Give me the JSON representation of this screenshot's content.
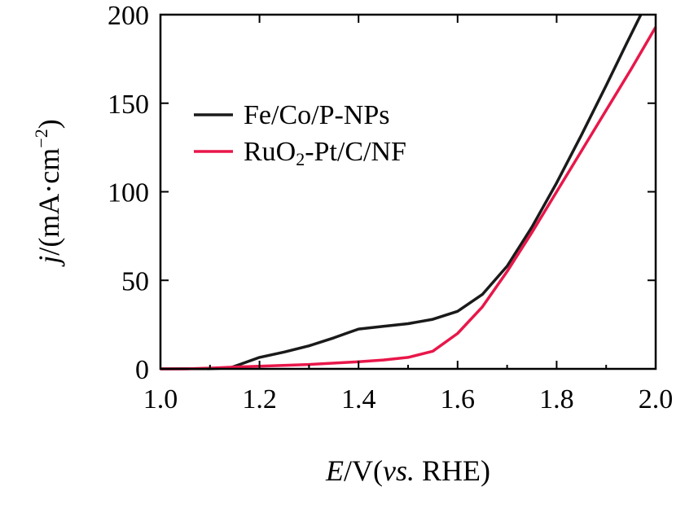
{
  "chart_data": {
    "type": "line",
    "xlabel": {
      "var": "E",
      "unit": "/V(",
      "ref_italic": "vs.",
      "ref": " RHE)"
    },
    "ylabel": {
      "var": "j",
      "unit": "/(mA·cm",
      "exp": "−2",
      "close": ")"
    },
    "xlim": [
      1.0,
      2.0
    ],
    "ylim": [
      0,
      200
    ],
    "x_ticks": [
      "1.0",
      "1.2",
      "1.4",
      "1.6",
      "1.8",
      "2.0"
    ],
    "y_ticks": [
      "0",
      "50",
      "100",
      "150",
      "200"
    ],
    "legend_position": "upper-left",
    "legend": [
      {
        "name": "Fe/Co/P-NPs"
      },
      {
        "base": "RuO",
        "sub": "2",
        "rest": "-Pt/C/NF"
      }
    ],
    "series": [
      {
        "name": "Fe/Co/P-NPs",
        "color": "#1a1a1a",
        "points": [
          [
            1.0,
            0.0
          ],
          [
            1.1,
            0.1
          ],
          [
            1.14,
            0.5
          ],
          [
            1.16,
            2.5
          ],
          [
            1.2,
            6.5
          ],
          [
            1.25,
            9.5
          ],
          [
            1.3,
            13.0
          ],
          [
            1.35,
            17.5
          ],
          [
            1.38,
            20.5
          ],
          [
            1.4,
            22.5
          ],
          [
            1.45,
            24.0
          ],
          [
            1.5,
            25.5
          ],
          [
            1.55,
            28.0
          ],
          [
            1.6,
            32.5
          ],
          [
            1.65,
            42.0
          ],
          [
            1.7,
            58.0
          ],
          [
            1.75,
            80.0
          ],
          [
            1.8,
            105.0
          ],
          [
            1.85,
            132.0
          ],
          [
            1.9,
            160.0
          ],
          [
            1.94,
            183.0
          ],
          [
            1.97,
            200.0
          ]
        ]
      },
      {
        "name": "RuO2-Pt/C/NF",
        "color": "#e8174a",
        "points": [
          [
            1.0,
            0.0
          ],
          [
            1.05,
            0.0
          ],
          [
            1.1,
            0.4
          ],
          [
            1.15,
            1.0
          ],
          [
            1.2,
            1.5
          ],
          [
            1.3,
            2.5
          ],
          [
            1.4,
            4.0
          ],
          [
            1.45,
            5.0
          ],
          [
            1.5,
            6.5
          ],
          [
            1.55,
            10.0
          ],
          [
            1.6,
            20.0
          ],
          [
            1.65,
            35.0
          ],
          [
            1.7,
            55.0
          ],
          [
            1.75,
            77.0
          ],
          [
            1.8,
            100.0
          ],
          [
            1.85,
            123.0
          ],
          [
            1.9,
            146.0
          ],
          [
            1.95,
            169.0
          ],
          [
            2.0,
            193.0
          ]
        ]
      }
    ]
  }
}
